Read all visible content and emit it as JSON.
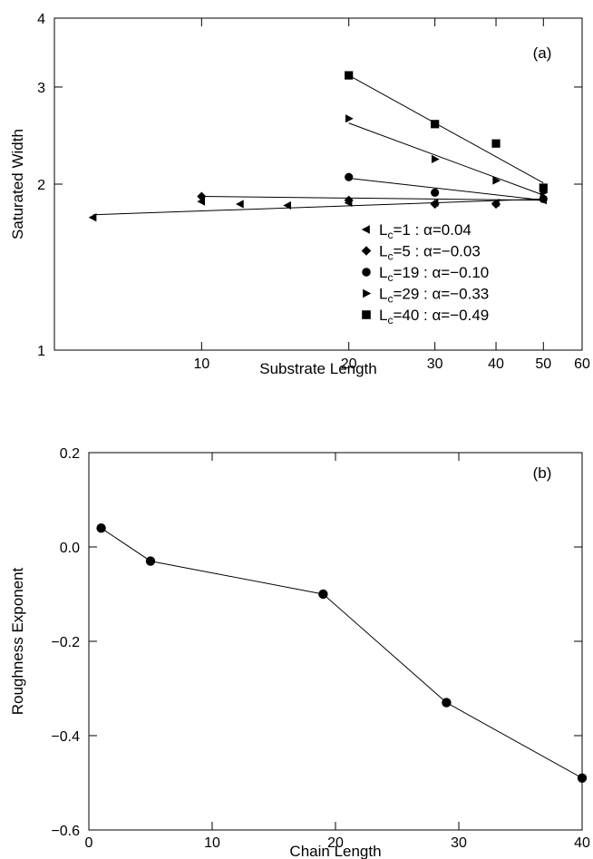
{
  "chart_data": [
    {
      "type": "scatter",
      "panel_label": "(a)",
      "xlabel": "Substrate Length",
      "ylabel": "Saturated Width",
      "xscale": "log",
      "yscale": "log",
      "xlim": [
        5,
        60
      ],
      "ylim": [
        1,
        4
      ],
      "xticks": [
        10,
        20,
        30,
        40,
        50,
        60
      ],
      "xtick_labels": [
        "10",
        "20",
        "30",
        "40",
        "50",
        "60"
      ],
      "yticks": [
        1,
        2,
        3,
        4
      ],
      "ytick_labels": [
        "1",
        "2",
        "3",
        "4"
      ],
      "grid": false,
      "legend_position": "center-right",
      "series": [
        {
          "name": "L_c=1 : α=0.04",
          "name_main": "L",
          "name_sub": "c",
          "name_rest": "=1 : α=0.04",
          "marker": "triangle-left",
          "x": [
            6,
            10,
            12,
            15,
            20,
            30,
            40,
            50
          ],
          "y": [
            1.74,
            1.86,
            1.84,
            1.83,
            1.85,
            1.85,
            1.85,
            1.87
          ],
          "fit": {
            "x": [
              6,
              50
            ],
            "y": [
              1.76,
              1.88
            ]
          }
        },
        {
          "name": "L_c=5 : α=−0.03",
          "name_main": "L",
          "name_sub": "c",
          "name_rest": "=5 : α=−0.03",
          "marker": "diamond",
          "x": [
            10,
            20,
            30,
            40
          ],
          "y": [
            1.9,
            1.87,
            1.84,
            1.84
          ],
          "fit": {
            "x": [
              10,
              50
            ],
            "y": [
              1.9,
              1.87
            ]
          }
        },
        {
          "name": "L_c=19 : α=−0.10",
          "name_main": "L",
          "name_sub": "c",
          "name_rest": "=19 : α=−0.10",
          "marker": "circle",
          "x": [
            20,
            30,
            50
          ],
          "y": [
            2.06,
            1.93,
            1.88
          ],
          "fit": {
            "x": [
              20,
              50
            ],
            "y": [
              2.05,
              1.87
            ]
          }
        },
        {
          "name": "L_c=29 : α=−0.33",
          "name_main": "L",
          "name_sub": "c",
          "name_rest": "=29 : α=−0.33",
          "marker": "triangle-right",
          "x": [
            20,
            30,
            40,
            50
          ],
          "y": [
            2.63,
            2.22,
            2.03,
            1.93
          ],
          "fit": {
            "x": [
              20,
              50
            ],
            "y": [
              2.58,
              1.91
            ]
          }
        },
        {
          "name": "L_c=40 : α=−0.49",
          "name_main": "L",
          "name_sub": "c",
          "name_rest": "=40 : α=−0.49",
          "marker": "square",
          "x": [
            20,
            30,
            40,
            50
          ],
          "y": [
            3.15,
            2.57,
            2.37,
            1.97
          ],
          "fit": {
            "x": [
              20,
              50
            ],
            "y": [
              3.15,
              2.01
            ]
          }
        }
      ]
    },
    {
      "type": "line",
      "panel_label": "(b)",
      "xlabel": "Chain Length",
      "ylabel": "Roughness Exponent",
      "xlim": [
        0,
        40
      ],
      "ylim": [
        -0.6,
        0.2
      ],
      "xticks": [
        0,
        10,
        20,
        30,
        40
      ],
      "xtick_labels": [
        "0",
        "10",
        "20",
        "30",
        "40"
      ],
      "yticks": [
        -0.6,
        -0.4,
        -0.2,
        0.0,
        0.2
      ],
      "ytick_labels": [
        "−0.6",
        "−0.4",
        "−0.2",
        "0.0",
        "0.2"
      ],
      "grid": false,
      "series": [
        {
          "marker": "circle",
          "x": [
            1,
            5,
            19,
            29,
            40
          ],
          "y": [
            0.04,
            -0.03,
            -0.1,
            -0.33,
            -0.49
          ]
        }
      ]
    }
  ]
}
